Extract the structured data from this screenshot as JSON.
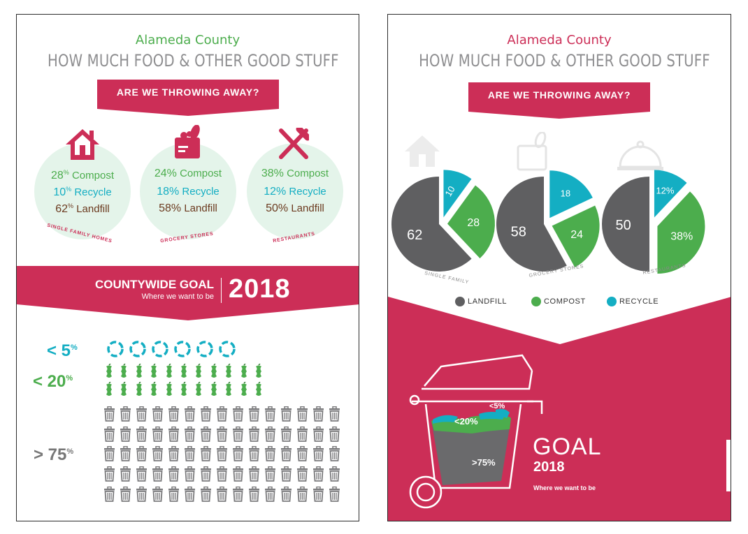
{
  "title_county": "Alameda County",
  "title_main": "HOW MUCH FOOD & OTHER GOOD STUFF",
  "banner": "ARE WE THROWING AWAY?",
  "colors": {
    "accent": "#cc2e57",
    "compost": "#4cad4d",
    "recycle": "#14aec3",
    "landfill": "#5f5f61",
    "circle_bg": "#e4f4ea"
  },
  "left": {
    "sectors": [
      {
        "icon": "house-icon",
        "caption": "SINGLE FAMILY HOMES",
        "compost": "28",
        "recycle": "10",
        "landfill": "62",
        "compost_unit": "%",
        "recycle_unit": "%",
        "landfill_unit": "%",
        "compost_label": "Compost",
        "recycle_label": "Recycle",
        "landfill_label": "Landfill"
      },
      {
        "icon": "grocery-bag-icon",
        "caption": "GROCERY STORES",
        "compost": "24%",
        "recycle": "18%",
        "landfill": "58%",
        "compost_label": "Compost",
        "recycle_label": "Recycle",
        "landfill_label": "Landfill"
      },
      {
        "icon": "fork-knife-icon",
        "caption": "RESTAURANTS",
        "compost": "38%",
        "recycle": "12%",
        "landfill": "50%",
        "compost_label": "Compost",
        "recycle_label": "Recycle",
        "landfill_label": "Landfill"
      }
    ],
    "goal": {
      "title": "COUNTYWIDE GOAL",
      "subtitle": "Where we want to be",
      "year": "2018"
    },
    "targets": [
      {
        "prefix": "< 5",
        "unit": "%",
        "icon": "recycle-icon"
      },
      {
        "prefix": "< 20",
        "unit": "%",
        "icon": "apple-core-icon"
      },
      {
        "prefix": "> 75",
        "unit": "%",
        "icon": "trash-can-icon"
      }
    ]
  },
  "right": {
    "pies": [
      {
        "caption": "SINGLE FAMILY",
        "icon": "house-icon",
        "landfill": 62,
        "compost": 28,
        "recycle": 10,
        "landfill_label": "62",
        "compost_label": "28",
        "recycle_label": "10",
        "unit": "%"
      },
      {
        "caption": "GROCERY STORES",
        "icon": "grocery-bag-icon",
        "landfill": 58,
        "compost": 24,
        "recycle": 18,
        "landfill_label": "58",
        "compost_label": "24",
        "recycle_label": "18",
        "unit": "%"
      },
      {
        "caption": "RESTAURANTS",
        "icon": "cloche-icon",
        "landfill": 50,
        "compost": 38,
        "recycle": 12,
        "landfill_label": "50",
        "compost_label": "38%",
        "recycle_label": "12%",
        "unit": "%"
      }
    ],
    "legend": [
      "LANDFILL",
      "COMPOST",
      "RECYCLE"
    ],
    "bin_labels": {
      "recycle": "<5%",
      "compost": "<20%",
      "landfill": ">75%"
    },
    "goal": {
      "word": "GOAL",
      "year": "2018",
      "subtitle": "Where we want to be"
    }
  }
}
